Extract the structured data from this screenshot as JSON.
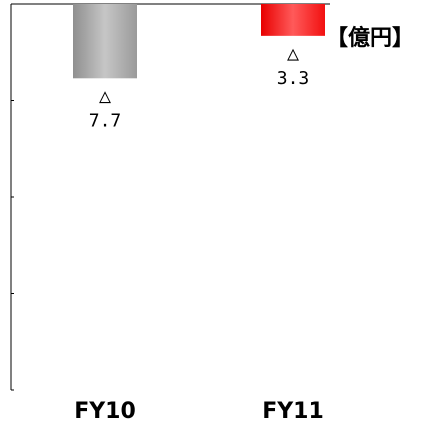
{
  "chart_data": {
    "type": "bar",
    "unit_label": "【億円】",
    "categories": [
      "FY10",
      "FY11"
    ],
    "values": [
      -7.7,
      -3.3
    ],
    "data_labels": [
      "△\n7.7",
      "△\n3.3"
    ],
    "ylim": [
      -40,
      0
    ],
    "grid": false,
    "legend": "none",
    "colors": {
      "FY10": "#a8a8a8",
      "FY11": "#ff2020",
      "axis": "#000000"
    }
  }
}
